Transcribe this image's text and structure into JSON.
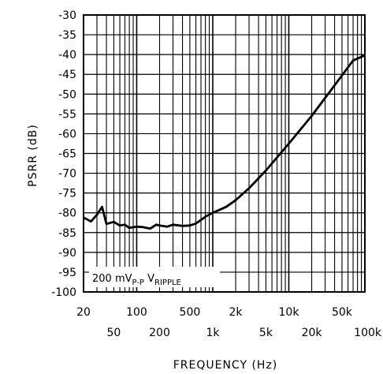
{
  "chart_data": {
    "type": "line",
    "xlabel": "FREQUENCY (Hz)",
    "ylabel": "PSRR (dB)",
    "x_scale": "log",
    "xlim": [
      20,
      100000
    ],
    "ylim": [
      -100,
      -30
    ],
    "grid": true,
    "x_ticks_top_row": [
      "20",
      "100",
      "500",
      "2k",
      "10k",
      "50k"
    ],
    "x_ticks_bottom_row": [
      "50",
      "200",
      "1k",
      "5k",
      "20k",
      "100k"
    ],
    "x_tick_values_top_row": [
      20,
      100,
      500,
      2000,
      10000,
      50000
    ],
    "x_tick_values_bottom_row": [
      50,
      200,
      1000,
      5000,
      20000,
      100000
    ],
    "y_ticks": [
      "-30",
      "-35",
      "-40",
      "-45",
      "-50",
      "-55",
      "-60",
      "-65",
      "-70",
      "-75",
      "-80",
      "-85",
      "-90",
      "-95",
      "-100"
    ],
    "y_tick_values": [
      -30,
      -35,
      -40,
      -45,
      -50,
      -55,
      -60,
      -65,
      -70,
      -75,
      -80,
      -85,
      -90,
      -95,
      -100
    ],
    "annotation": {
      "prefix": "200 mV",
      "sub1": "P-P",
      "mid": "V",
      "sub2": "RIPPLE"
    },
    "series": [
      {
        "x": [
          20,
          25,
          30,
          35,
          40,
          50,
          60,
          70,
          80,
          100,
          120,
          150,
          180,
          200,
          250,
          300,
          400,
          500,
          600,
          700,
          800,
          1000,
          1500,
          2000,
          3000,
          5000,
          10000,
          20000,
          50000,
          70000,
          100000
        ],
        "y": [
          -81.2,
          -82.2,
          -80.5,
          -78.5,
          -82.8,
          -82.3,
          -83.2,
          -83.0,
          -83.8,
          -83.5,
          -83.6,
          -84.0,
          -83.0,
          -83.2,
          -83.5,
          -83.0,
          -83.3,
          -83.2,
          -82.7,
          -81.8,
          -81.0,
          -80.0,
          -78.5,
          -76.8,
          -73.8,
          -69.3,
          -62.5,
          -55.5,
          -45.3,
          -41.5,
          -40.2
        ]
      }
    ]
  }
}
